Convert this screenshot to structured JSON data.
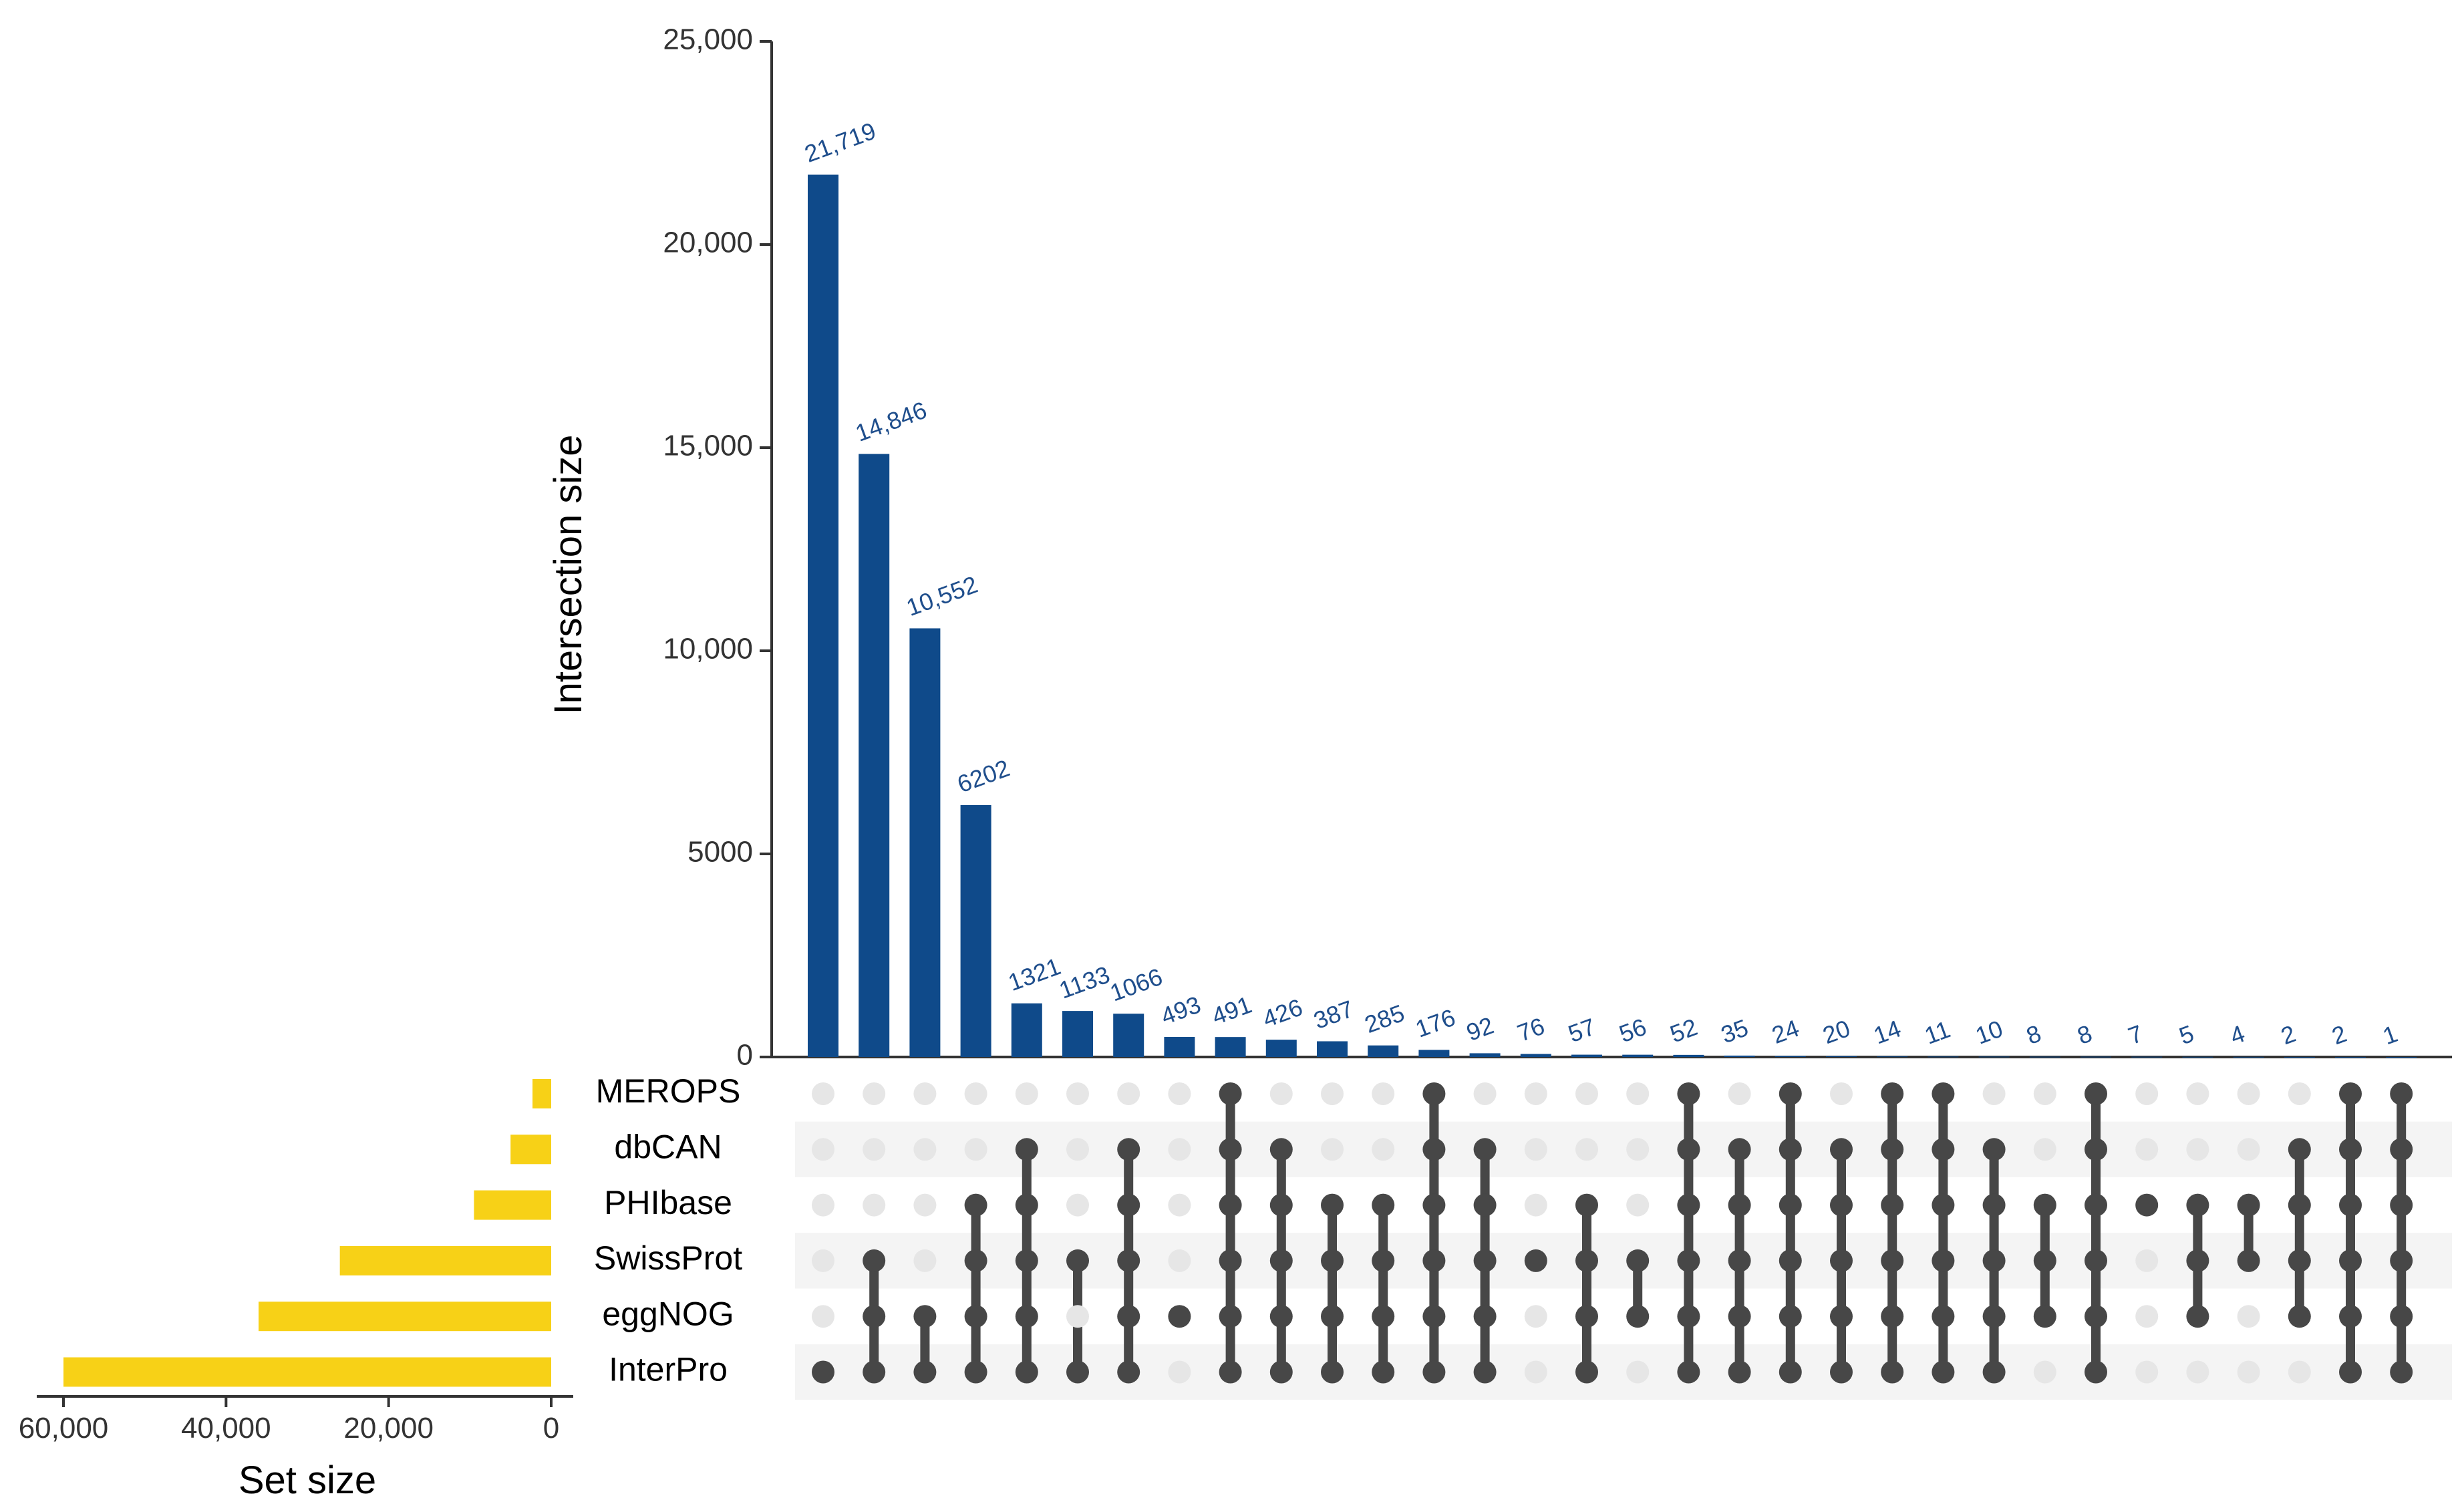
{
  "colors": {
    "intersection_bar": "#0f4a8a",
    "set_bar": "#f7d117",
    "dot_active": "#474747",
    "dot_inactive": "#e6e6e6",
    "stripe": "#f4f4f4",
    "bar_value_text": "#1f4e8c"
  },
  "chart_data": {
    "type": "upset",
    "sets": [
      "MEROPS",
      "dbCAN",
      "PHIbase",
      "SwissProt",
      "eggNOG",
      "InterPro"
    ],
    "set_sizes": [
      2300,
      5000,
      9500,
      26000,
      36000,
      60000
    ],
    "intersection_axis": {
      "title": "Intersection size",
      "ylim": [
        0,
        25000
      ],
      "ticks": [
        0,
        5000,
        10000,
        15000,
        20000,
        25000
      ],
      "tick_labels": [
        "0",
        "5000",
        "10,000",
        "15,000",
        "20,000",
        "25,000"
      ]
    },
    "set_size_axis": {
      "title": "Set size",
      "xlim": [
        60000,
        0
      ],
      "ticks": [
        60000,
        40000,
        20000,
        0
      ],
      "tick_labels": [
        "60,000",
        "40,000",
        "20,000",
        "0"
      ]
    },
    "intersections": [
      {
        "value": 21719,
        "label": "21,719",
        "sets": [
          "InterPro"
        ]
      },
      {
        "value": 14846,
        "label": "14,846",
        "sets": [
          "SwissProt",
          "eggNOG",
          "InterPro"
        ]
      },
      {
        "value": 10552,
        "label": "10,552",
        "sets": [
          "eggNOG",
          "InterPro"
        ]
      },
      {
        "value": 6202,
        "label": "6202",
        "sets": [
          "PHIbase",
          "SwissProt",
          "eggNOG",
          "InterPro"
        ]
      },
      {
        "value": 1321,
        "label": "1321",
        "sets": [
          "dbCAN",
          "PHIbase",
          "SwissProt",
          "eggNOG",
          "InterPro"
        ]
      },
      {
        "value": 1133,
        "label": "1133",
        "sets": [
          "SwissProt",
          "InterPro"
        ]
      },
      {
        "value": 1066,
        "label": "1066",
        "sets": [
          "dbCAN",
          "PHIbase",
          "SwissProt",
          "eggNOG",
          "InterPro"
        ]
      },
      {
        "value": 493,
        "label": "493",
        "sets": [
          "eggNOG"
        ]
      },
      {
        "value": 491,
        "label": "491",
        "sets": [
          "MEROPS",
          "dbCAN",
          "PHIbase",
          "SwissProt",
          "eggNOG",
          "InterPro"
        ]
      },
      {
        "value": 426,
        "label": "426",
        "sets": [
          "dbCAN",
          "PHIbase",
          "SwissProt",
          "eggNOG",
          "InterPro"
        ]
      },
      {
        "value": 387,
        "label": "387",
        "sets": [
          "PHIbase",
          "SwissProt",
          "eggNOG",
          "InterPro"
        ]
      },
      {
        "value": 285,
        "label": "285",
        "sets": [
          "PHIbase",
          "SwissProt",
          "eggNOG",
          "InterPro"
        ]
      },
      {
        "value": 176,
        "label": "176",
        "sets": [
          "MEROPS",
          "dbCAN",
          "PHIbase",
          "SwissProt",
          "eggNOG",
          "InterPro"
        ]
      },
      {
        "value": 92,
        "label": "92",
        "sets": [
          "dbCAN",
          "PHIbase",
          "SwissProt",
          "eggNOG",
          "InterPro"
        ]
      },
      {
        "value": 76,
        "label": "76",
        "sets": [
          "SwissProt"
        ]
      },
      {
        "value": 57,
        "label": "57",
        "sets": [
          "PHIbase",
          "SwissProt",
          "eggNOG",
          "InterPro"
        ]
      },
      {
        "value": 56,
        "label": "56",
        "sets": [
          "SwissProt",
          "eggNOG"
        ]
      },
      {
        "value": 52,
        "label": "52",
        "sets": [
          "MEROPS",
          "dbCAN",
          "PHIbase",
          "SwissProt",
          "eggNOG",
          "InterPro"
        ]
      },
      {
        "value": 35,
        "label": "35",
        "sets": [
          "dbCAN",
          "PHIbase",
          "SwissProt",
          "eggNOG",
          "InterPro"
        ]
      },
      {
        "value": 24,
        "label": "24",
        "sets": [
          "MEROPS",
          "dbCAN",
          "PHIbase",
          "SwissProt",
          "eggNOG",
          "InterPro"
        ]
      },
      {
        "value": 20,
        "label": "20",
        "sets": [
          "dbCAN",
          "PHIbase",
          "SwissProt",
          "eggNOG",
          "InterPro"
        ]
      },
      {
        "value": 14,
        "label": "14",
        "sets": [
          "MEROPS",
          "dbCAN",
          "PHIbase",
          "SwissProt",
          "eggNOG",
          "InterPro"
        ]
      },
      {
        "value": 11,
        "label": "11",
        "sets": [
          "MEROPS",
          "dbCAN",
          "PHIbase",
          "SwissProt",
          "eggNOG",
          "InterPro"
        ]
      },
      {
        "value": 10,
        "label": "10",
        "sets": [
          "dbCAN",
          "PHIbase",
          "SwissProt",
          "eggNOG",
          "InterPro"
        ]
      },
      {
        "value": 8,
        "label": "8",
        "sets": [
          "PHIbase",
          "SwissProt",
          "eggNOG"
        ]
      },
      {
        "value": 8,
        "label": "8",
        "sets": [
          "MEROPS",
          "dbCAN",
          "PHIbase",
          "SwissProt",
          "eggNOG",
          "InterPro"
        ]
      },
      {
        "value": 7,
        "label": "7",
        "sets": [
          "PHIbase"
        ]
      },
      {
        "value": 5,
        "label": "5",
        "sets": [
          "PHIbase",
          "SwissProt",
          "eggNOG"
        ]
      },
      {
        "value": 4,
        "label": "4",
        "sets": [
          "PHIbase",
          "SwissProt"
        ]
      },
      {
        "value": 2,
        "label": "2",
        "sets": [
          "dbCAN",
          "PHIbase",
          "SwissProt",
          "eggNOG"
        ]
      },
      {
        "value": 2,
        "label": "2",
        "sets": [
          "MEROPS",
          "dbCAN",
          "PHIbase",
          "SwissProt",
          "eggNOG",
          "InterPro"
        ]
      },
      {
        "value": 1,
        "label": "1",
        "sets": [
          "MEROPS",
          "dbCAN",
          "PHIbase",
          "SwissProt",
          "eggNOG",
          "InterPro"
        ]
      }
    ]
  }
}
